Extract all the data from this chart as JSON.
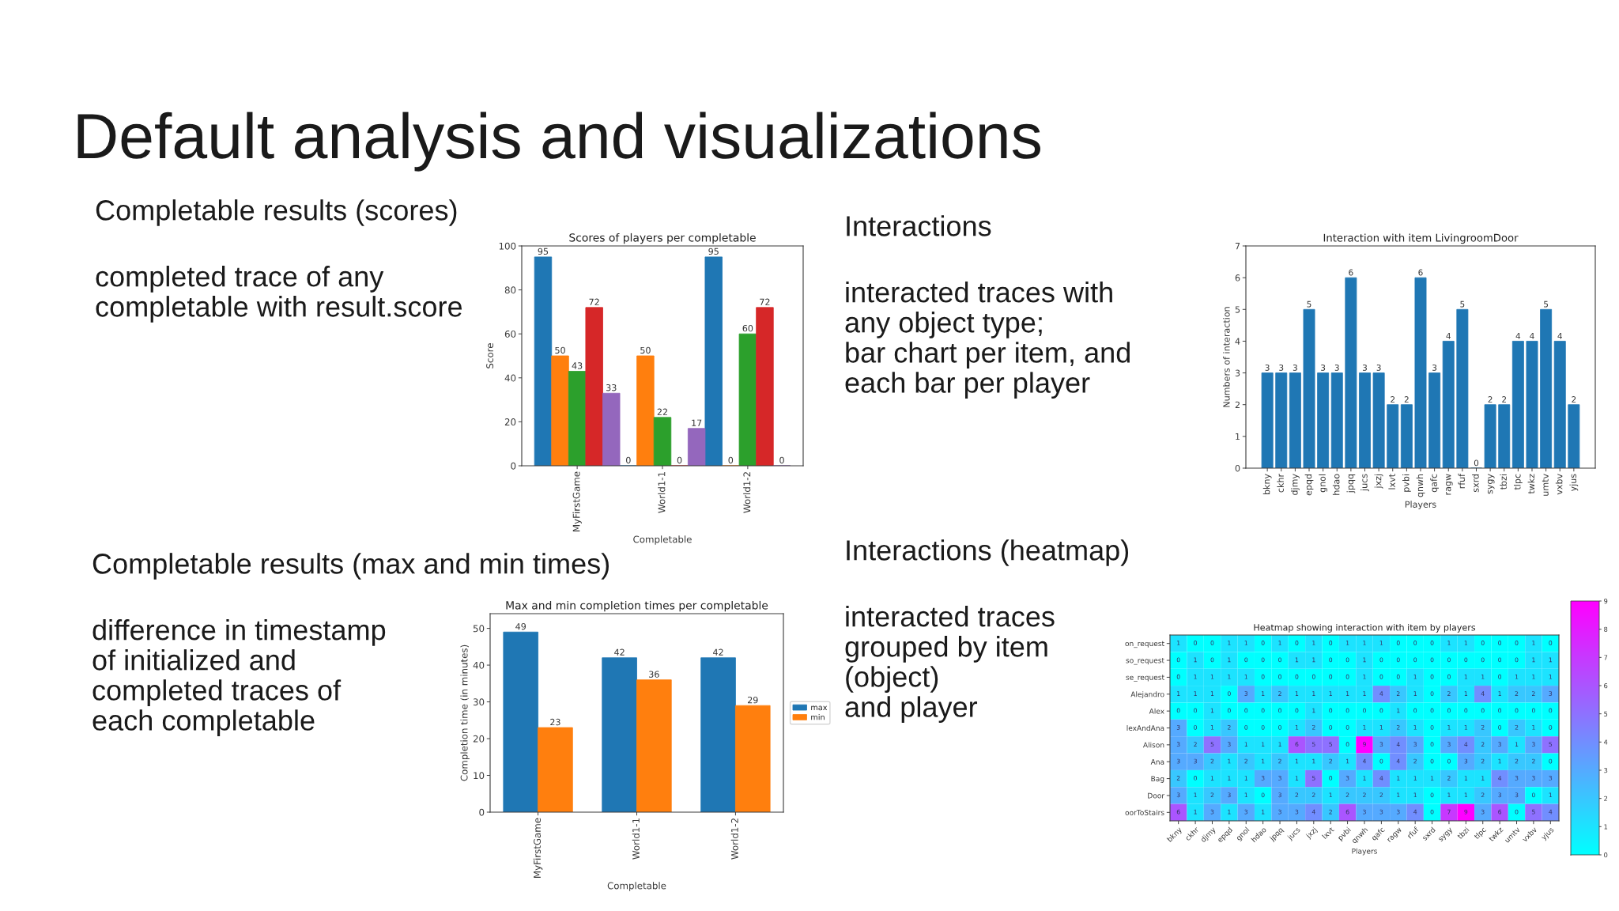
{
  "chart_data": [
    {
      "type": "other",
      "title": "Default analysis and visualizations"
    },
    {
      "type": "other",
      "title": "Completable results (scores)",
      "annotations": [
        "completed trace of any\ncompletable with result.score"
      ]
    },
    {
      "type": "bar",
      "title": "Scores of players per completable",
      "xlabel": "Completable",
      "ylabel": "Score",
      "categories": [
        "MyFirstGame",
        "World1-1",
        "World1-2"
      ],
      "series": [
        {
          "color": "#1f77b4",
          "values": [
            95,
            0,
            95
          ]
        },
        {
          "color": "#ff7f0e",
          "values": [
            50,
            50,
            0
          ]
        },
        {
          "color": "#2ca02c",
          "values": [
            43,
            22,
            60
          ]
        },
        {
          "color": "#d62728",
          "values": [
            72,
            0,
            72
          ]
        },
        {
          "color": "#9467bd",
          "values": [
            33,
            17,
            0
          ]
        }
      ],
      "ylim": [
        0,
        100
      ],
      "yticks": [
        0,
        20,
        40,
        60,
        80,
        100
      ],
      "data_labels": true
    },
    {
      "type": "other",
      "title": "Interactions",
      "annotations": [
        "interacted traces with\nany object type;\nbar chart per item, and\neach bar per player"
      ]
    },
    {
      "type": "bar",
      "title": "Interaction with item LivingroomDoor",
      "xlabel": "Players",
      "ylabel": "Numbers of interaction",
      "categories": [
        "bkny",
        "ckhr",
        "djmy",
        "epqd",
        "gnol",
        "hdao",
        "jpqq",
        "jucs",
        "jxzj",
        "lxvt",
        "pvbi",
        "qnwh",
        "qafc",
        "ragw",
        "rfuf",
        "sxrd",
        "sygy",
        "tbzi",
        "tlpc",
        "twkz",
        "umtv",
        "vxbv",
        "yjus"
      ],
      "values": [
        3,
        3,
        3,
        5,
        3,
        3,
        6,
        3,
        3,
        2,
        2,
        6,
        3,
        4,
        5,
        0,
        2,
        2,
        4,
        4,
        5,
        4,
        2
      ],
      "color": "#1f77b4",
      "ylim": [
        0,
        7
      ],
      "yticks": [
        0,
        1,
        2,
        3,
        4,
        5,
        6,
        7
      ],
      "data_labels": true
    },
    {
      "type": "other",
      "title": "Completable results (max and min times)",
      "annotations": [
        "difference in timestamp\nof initialized and\ncompleted traces of\neach completable"
      ]
    },
    {
      "type": "bar",
      "title": "Max and min completion times per completable",
      "xlabel": "Completable",
      "ylabel": "Completion time (in minutes)",
      "categories": [
        "MyFirstGame",
        "World1-1",
        "World1-2"
      ],
      "series": [
        {
          "name": "max",
          "color": "#1f77b4",
          "values": [
            49,
            42,
            42
          ]
        },
        {
          "name": "min",
          "color": "#ff7f0e",
          "values": [
            23,
            36,
            29
          ]
        }
      ],
      "ylim": [
        0,
        54
      ],
      "yticks": [
        0,
        10,
        20,
        30,
        40,
        50
      ],
      "data_labels": true,
      "legend": "right"
    },
    {
      "type": "other",
      "title": "Interactions (heatmap)",
      "annotations": [
        "interacted traces\ngrouped by item\n(object)\nand player"
      ]
    },
    {
      "type": "heatmap",
      "title": "Heatmap showing interaction with item by players",
      "xlabel": "Players",
      "categories": [
        "bkny",
        "ckhr",
        "djmy",
        "epqd",
        "gnol",
        "hdao",
        "jpqq",
        "jucs",
        "jxzj",
        "lxvt",
        "pvbi",
        "qnwh",
        "qafc",
        "ragw",
        "rfuf",
        "sxrd",
        "sygy",
        "tbzi",
        "tlpc",
        "twkz",
        "umtv",
        "vxbv",
        "yjus"
      ],
      "y_categories": [
        "on_request",
        "so_request",
        "se_request",
        "Alejandro",
        "Alex",
        "lexAndAna",
        "Alison",
        "Ana",
        "Bag",
        "Door",
        "oorToStairs"
      ],
      "cells": [
        [
          1,
          0,
          0,
          1,
          1,
          0,
          1,
          0,
          1,
          0,
          1,
          1,
          1,
          0,
          0,
          0,
          1,
          1,
          0,
          0,
          0,
          1,
          0
        ],
        [
          0,
          1,
          0,
          1,
          0,
          0,
          0,
          1,
          1,
          0,
          0,
          1,
          0,
          0,
          0,
          0,
          0,
          0,
          0,
          0,
          0,
          1,
          1
        ],
        [
          0,
          1,
          1,
          1,
          1,
          0,
          0,
          0,
          0,
          0,
          0,
          1,
          0,
          0,
          1,
          0,
          0,
          1,
          1,
          0,
          1,
          1,
          1
        ],
        [
          1,
          1,
          1,
          0,
          3,
          1,
          2,
          1,
          1,
          1,
          1,
          1,
          4,
          2,
          1,
          0,
          2,
          1,
          4,
          1,
          2,
          2,
          3
        ],
        [
          0,
          0,
          1,
          0,
          0,
          0,
          0,
          0,
          1,
          0,
          0,
          0,
          0,
          1,
          0,
          0,
          0,
          0,
          0,
          0,
          0,
          0,
          0
        ],
        [
          3,
          0,
          1,
          2,
          0,
          0,
          0,
          1,
          2,
          0,
          0,
          1,
          1,
          2,
          1,
          0,
          1,
          1,
          2,
          0,
          2,
          1,
          0
        ],
        [
          3,
          2,
          5,
          3,
          1,
          1,
          1,
          6,
          5,
          5,
          0,
          9,
          3,
          4,
          3,
          0,
          3,
          4,
          2,
          3,
          1,
          3,
          5
        ],
        [
          3,
          3,
          2,
          1,
          2,
          1,
          2,
          1,
          1,
          2,
          1,
          4,
          0,
          4,
          2,
          0,
          0,
          3,
          2,
          1,
          2,
          2,
          0
        ],
        [
          2,
          0,
          1,
          1,
          1,
          3,
          3,
          1,
          5,
          0,
          3,
          1,
          4,
          1,
          1,
          1,
          2,
          1,
          1,
          4,
          3,
          3,
          3
        ],
        [
          3,
          1,
          2,
          3,
          1,
          0,
          3,
          2,
          2,
          1,
          2,
          2,
          2,
          1,
          1,
          0,
          1,
          1,
          2,
          3,
          3,
          0,
          1
        ],
        [
          6,
          1,
          3,
          1,
          3,
          1,
          3,
          3,
          4,
          2,
          6,
          3,
          3,
          3,
          4,
          0,
          7,
          9,
          3,
          6,
          0,
          5,
          4
        ]
      ],
      "clim": [
        0,
        9
      ],
      "cticks": [
        0,
        1,
        2,
        3,
        4,
        5,
        6,
        7,
        8,
        9
      ],
      "data_labels": true
    }
  ]
}
